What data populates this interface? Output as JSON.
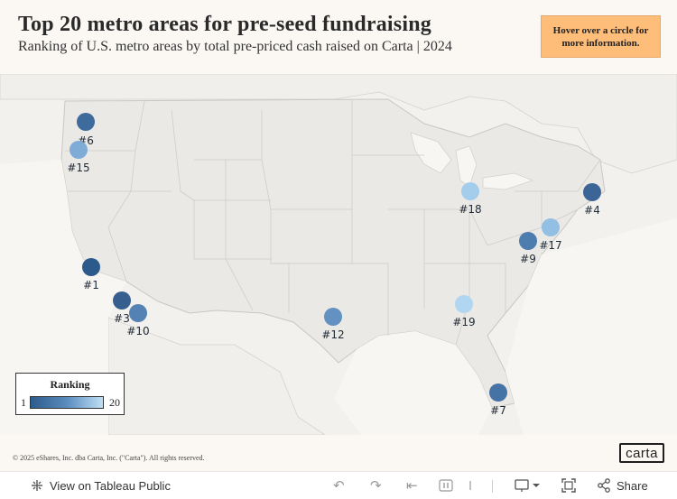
{
  "header": {
    "title": "Top 20 metro areas for pre-seed fundraising",
    "subtitle": "Ranking of U.S. metro areas by total pre-priced cash raised on Carta | 2024"
  },
  "hover_hint": "Hover over a circle for more information.",
  "legend": {
    "title": "Ranking",
    "min": "1",
    "max": "20",
    "color_low": "#2d5b8c",
    "color_high": "#bfe0f5"
  },
  "markers": [
    {
      "rank": 1,
      "label": "#1",
      "place": "San Francisco Bay Area",
      "color": "#2c5a8a"
    },
    {
      "rank": 3,
      "label": "#3",
      "place": "Los Angeles",
      "color": "#365f8f"
    },
    {
      "rank": 4,
      "label": "#4",
      "place": "New York",
      "color": "#3a6596"
    },
    {
      "rank": 6,
      "label": "#6",
      "place": "Seattle",
      "color": "#3e6a9c"
    },
    {
      "rank": 7,
      "label": "#7",
      "place": "Miami",
      "color": "#4573a6"
    },
    {
      "rank": 9,
      "label": "#9",
      "place": "Washington DC",
      "color": "#4d7cae"
    },
    {
      "rank": 10,
      "label": "#10",
      "place": "San Diego",
      "color": "#5482b4"
    },
    {
      "rank": 12,
      "label": "#12",
      "place": "Austin",
      "color": "#6391c1"
    },
    {
      "rank": 15,
      "label": "#15",
      "place": "Portland",
      "color": "#7eacd6"
    },
    {
      "rank": 17,
      "label": "#17",
      "place": "Philadelphia",
      "color": "#92bfe3"
    },
    {
      "rank": 18,
      "label": "#18",
      "place": "Chicago",
      "color": "#a4cdec"
    },
    {
      "rank": 19,
      "label": "#19",
      "place": "Atlanta",
      "color": "#b1d6f1"
    }
  ],
  "footer": {
    "copyright": "© 2025 eShares, Inc. dba Carta, Inc. (\"Carta\"). All rights reserved.",
    "logo_text": "carta"
  },
  "toolbar": {
    "view_label": "View on Tableau Public",
    "share_label": "Share",
    "icons": [
      "tableau-icon",
      "undo-icon",
      "redo-icon",
      "revert-icon",
      "pause-icon",
      "download-icon",
      "fullscreen-icon",
      "share-icon"
    ]
  }
}
